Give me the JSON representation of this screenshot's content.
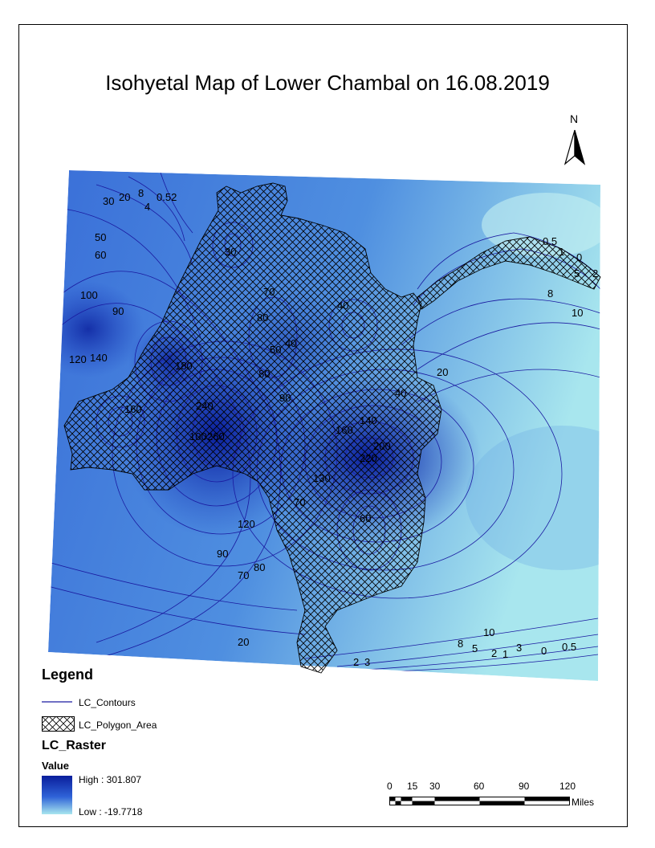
{
  "title": "Isohyetal Map of Lower Chambal on 16.08.2019",
  "north_label": "N",
  "legend": {
    "heading": "Legend",
    "contours_label": "LC_Contours",
    "polygon_label": "LC_Polygon_Area",
    "raster_label": "LC_Raster",
    "value_label": "Value",
    "high_label": "High : 301.807",
    "low_label": "Low : -19.7718"
  },
  "scale_bar": {
    "ticks": [
      "0",
      "15",
      "30",
      "60",
      "90",
      "120"
    ],
    "unit": "Miles"
  },
  "contour_labels": [
    "30",
    "20",
    "8",
    "4",
    "0.52",
    "50",
    "60",
    "100",
    "90",
    "120",
    "140",
    "80",
    "40",
    "0.5",
    "1",
    "0",
    "2",
    "5",
    "8",
    "10",
    "20",
    "40",
    "140",
    "160",
    "200",
    "220",
    "240",
    "260",
    "100",
    "70",
    "120",
    "90",
    "70",
    "80",
    "20",
    "8",
    "5",
    "2",
    "1",
    "3",
    "0",
    "0.5",
    "10",
    "2",
    "3",
    "160",
    "180",
    "60",
    "80",
    "50",
    "90",
    "70",
    "130",
    "40",
    "30"
  ],
  "colors": {
    "high": "#0a1e9c",
    "mid": "#3a6fd8",
    "low": "#a8e6ee",
    "contour": "#1a1aa0"
  }
}
